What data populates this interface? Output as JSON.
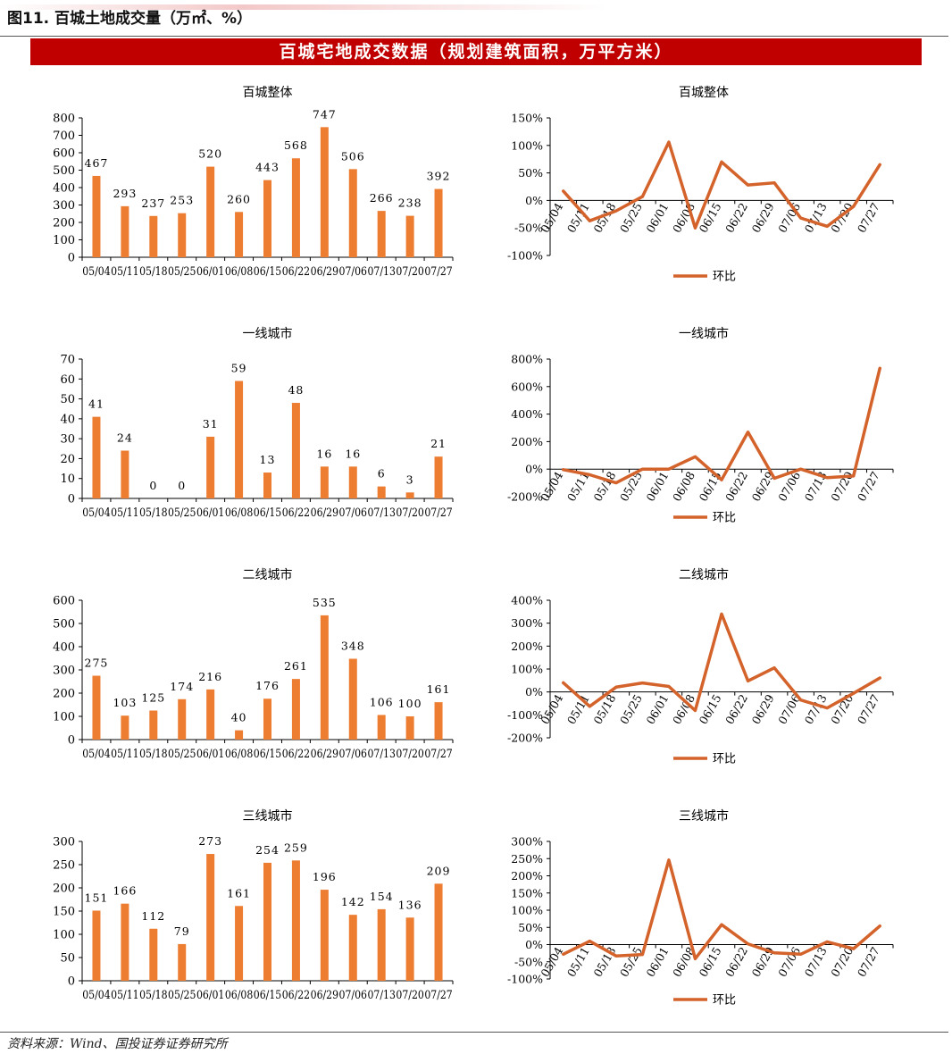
{
  "figure_title": "图11. 百城土地成交量（万㎡、%）",
  "banner": "百城宅地成交数据（规划建筑面积，万平方米）",
  "source": "资料来源：Wind、国投证券证券研究所",
  "colors": {
    "bar": "#ed7d31",
    "line": "#d4622b",
    "banner": "#c00000",
    "axis": "#000000"
  },
  "chart_data": [
    {
      "type": "bar",
      "title": "百城整体",
      "categories": [
        "05/04",
        "05/11",
        "05/18",
        "05/25",
        "06/01",
        "06/08",
        "06/15",
        "06/22",
        "06/29",
        "07/06",
        "07/13",
        "07/20",
        "07/27"
      ],
      "values": [
        467,
        293,
        237,
        253,
        520,
        260,
        443,
        568,
        747,
        506,
        266,
        238,
        392
      ],
      "ylim": [
        0,
        800
      ],
      "yticks": [
        0,
        100,
        200,
        300,
        400,
        500,
        600,
        700,
        800
      ],
      "yticks_text": [
        "0",
        "100",
        "200",
        "300",
        "400",
        "500",
        "600",
        "700",
        "800"
      ]
    },
    {
      "type": "line",
      "title": "百城整体",
      "categories": [
        "05/04",
        "05/11",
        "05/18",
        "05/25",
        "06/01",
        "06/08",
        "06/15",
        "06/22",
        "06/29",
        "07/06",
        "07/13",
        "07/20",
        "07/27"
      ],
      "series": [
        {
          "name": "环比",
          "values": [
            17,
            -37,
            -19,
            7,
            106,
            -50,
            70,
            28,
            32,
            -32,
            -47,
            -11,
            65
          ]
        }
      ],
      "ylim": [
        -100,
        150
      ],
      "yticks": [
        -100,
        -50,
        0,
        50,
        100,
        150
      ],
      "yticks_text": [
        "-100%",
        "-50%",
        "0%",
        "50%",
        "100%",
        "150%"
      ],
      "legend": "bottom"
    },
    {
      "type": "bar",
      "title": "一线城市",
      "categories": [
        "05/04",
        "05/11",
        "05/18",
        "05/25",
        "06/01",
        "06/08",
        "06/15",
        "06/22",
        "06/29",
        "07/06",
        "07/13",
        "07/20",
        "07/27"
      ],
      "values": [
        41,
        24,
        0,
        0,
        31,
        59,
        13,
        48,
        16,
        16,
        6,
        3,
        21
      ],
      "ylim": [
        0,
        70
      ],
      "yticks": [
        0,
        10,
        20,
        30,
        40,
        50,
        60,
        70
      ],
      "yticks_text": [
        "0",
        "10",
        "20",
        "30",
        "40",
        "50",
        "60",
        "70"
      ]
    },
    {
      "type": "line",
      "title": "一线城市",
      "categories": [
        "05/04",
        "05/11",
        "05/18",
        "05/25",
        "06/01",
        "06/08",
        "06/15",
        "06/22",
        "06/29",
        "07/06",
        "07/13",
        "07/20",
        "07/27"
      ],
      "series": [
        {
          "name": "环比",
          "values": [
            -4,
            -41,
            -100,
            0,
            0,
            90,
            -78,
            269,
            -67,
            0,
            -62,
            -50,
            733
          ]
        }
      ],
      "ylim": [
        -200,
        800
      ],
      "yticks": [
        -200,
        0,
        200,
        400,
        600,
        800
      ],
      "yticks_text": [
        "-200%",
        "0%",
        "200%",
        "400%",
        "600%",
        "800%"
      ],
      "legend": "bottom"
    },
    {
      "type": "bar",
      "title": "二线城市",
      "categories": [
        "05/04",
        "05/11",
        "05/18",
        "05/25",
        "06/01",
        "06/08",
        "06/15",
        "06/22",
        "06/29",
        "07/06",
        "07/13",
        "07/20",
        "07/27"
      ],
      "values": [
        275,
        103,
        125,
        174,
        216,
        40,
        176,
        261,
        535,
        348,
        106,
        100,
        161
      ],
      "ylim": [
        0,
        600
      ],
      "yticks": [
        0,
        100,
        200,
        300,
        400,
        500,
        600
      ],
      "yticks_text": [
        "0",
        "100",
        "200",
        "300",
        "400",
        "500",
        "600"
      ]
    },
    {
      "type": "line",
      "title": "二线城市",
      "categories": [
        "05/04",
        "05/11",
        "05/18",
        "05/25",
        "06/01",
        "06/08",
        "06/15",
        "06/22",
        "06/29",
        "07/06",
        "07/13",
        "07/20",
        "07/27"
      ],
      "series": [
        {
          "name": "环比",
          "values": [
            40,
            -63,
            21,
            39,
            24,
            -81,
            340,
            48,
            105,
            -35,
            -70,
            -6,
            61
          ]
        }
      ],
      "ylim": [
        -200,
        400
      ],
      "yticks": [
        -200,
        -100,
        0,
        100,
        200,
        300,
        400
      ],
      "yticks_text": [
        "-200%",
        "-100%",
        "0%",
        "100%",
        "200%",
        "300%",
        "400%"
      ],
      "legend": "bottom"
    },
    {
      "type": "bar",
      "title": "三线城市",
      "categories": [
        "05/04",
        "05/11",
        "05/18",
        "05/25",
        "06/01",
        "06/08",
        "06/15",
        "06/22",
        "06/29",
        "07/06",
        "07/13",
        "07/20",
        "07/27"
      ],
      "values": [
        151,
        166,
        112,
        79,
        273,
        161,
        254,
        259,
        196,
        142,
        154,
        136,
        209
      ],
      "ylim": [
        0,
        300
      ],
      "yticks": [
        0,
        50,
        100,
        150,
        200,
        250,
        300
      ],
      "yticks_text": [
        "0",
        "50",
        "100",
        "150",
        "200",
        "250",
        "300"
      ]
    },
    {
      "type": "line",
      "title": "三线城市",
      "categories": [
        "05/04",
        "05/11",
        "05/18",
        "05/25",
        "06/01",
        "06/08",
        "06/15",
        "06/22",
        "06/29",
        "07/06",
        "07/13",
        "07/20",
        "07/27"
      ],
      "series": [
        {
          "name": "环比",
          "values": [
            -28,
            10,
            -33,
            -29,
            246,
            -41,
            58,
            2,
            -24,
            -28,
            8,
            -12,
            54
          ]
        }
      ],
      "ylim": [
        -100,
        300
      ],
      "yticks": [
        -100,
        -50,
        0,
        50,
        100,
        150,
        200,
        250,
        300
      ],
      "yticks_text": [
        "-100%",
        "-50%",
        "0%",
        "50%",
        "100%",
        "150%",
        "200%",
        "250%",
        "300%"
      ],
      "legend": "bottom"
    }
  ]
}
